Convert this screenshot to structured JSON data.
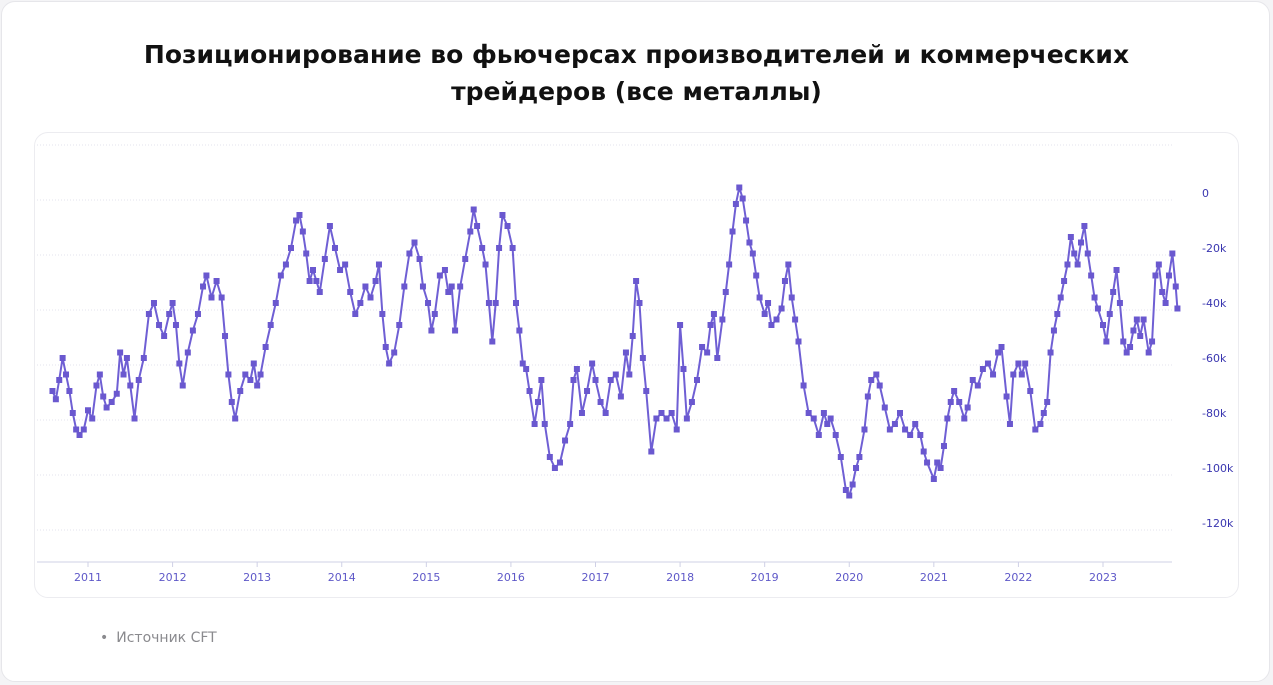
{
  "title_line1": "Позиционирование во фьючерсах производителей и коммерческих",
  "title_line2": "трейдеров (все металлы)",
  "source": "Источник CFT",
  "colors": {
    "series": "#6f5fd4",
    "marker": "#6a58cf",
    "grid": "#e3e3ee",
    "axis_text": "#3a36b0"
  },
  "chart_data": {
    "type": "line",
    "title": "Позиционирование во фьючерсах производителей и коммерческих трейдеров (все металлы)",
    "xlabel": "",
    "ylabel": "",
    "ylim": [
      -130000,
      15000
    ],
    "xlim": [
      2010.55,
      2023.9
    ],
    "grid": "horizontal",
    "legend": "none",
    "yticks": [
      {
        "v": 0,
        "label": "0"
      },
      {
        "v": -20000,
        "label": "-20k"
      },
      {
        "v": -40000,
        "label": "-40k"
      },
      {
        "v": -60000,
        "label": "-60k"
      },
      {
        "v": -80000,
        "label": "-80k"
      },
      {
        "v": -100000,
        "label": "-100k"
      },
      {
        "v": -120000,
        "label": "-120k"
      }
    ],
    "xticks": [
      {
        "v": 2011,
        "label": "2011"
      },
      {
        "v": 2012,
        "label": "2012"
      },
      {
        "v": 2013,
        "label": "2013"
      },
      {
        "v": 2014,
        "label": "2014"
      },
      {
        "v": 2015,
        "label": "2015"
      },
      {
        "v": 2016,
        "label": "2016"
      },
      {
        "v": 2017,
        "label": "2017"
      },
      {
        "v": 2018,
        "label": "2018"
      },
      {
        "v": 2019,
        "label": "2019"
      },
      {
        "v": 2020,
        "label": "2020"
      },
      {
        "v": 2021,
        "label": "2021"
      },
      {
        "v": 2022,
        "label": "2022"
      },
      {
        "v": 2023,
        "label": "2023"
      }
    ],
    "series": [
      {
        "points": [
          [
            2010.58,
            -72000
          ],
          [
            2010.62,
            -75000
          ],
          [
            2010.66,
            -68000
          ],
          [
            2010.7,
            -60000
          ],
          [
            2010.74,
            -66000
          ],
          [
            2010.78,
            -72000
          ],
          [
            2010.82,
            -80000
          ],
          [
            2010.86,
            -86000
          ],
          [
            2010.9,
            -88000
          ],
          [
            2010.95,
            -86000
          ],
          [
            2011.0,
            -79000
          ],
          [
            2011.05,
            -82000
          ],
          [
            2011.1,
            -70000
          ],
          [
            2011.14,
            -66000
          ],
          [
            2011.18,
            -74000
          ],
          [
            2011.22,
            -78000
          ],
          [
            2011.28,
            -76000
          ],
          [
            2011.34,
            -73000
          ],
          [
            2011.38,
            -58000
          ],
          [
            2011.42,
            -66000
          ],
          [
            2011.46,
            -60000
          ],
          [
            2011.5,
            -70000
          ],
          [
            2011.55,
            -82000
          ],
          [
            2011.6,
            -68000
          ],
          [
            2011.66,
            -60000
          ],
          [
            2011.72,
            -44000
          ],
          [
            2011.78,
            -40000
          ],
          [
            2011.84,
            -48000
          ],
          [
            2011.9,
            -52000
          ],
          [
            2011.96,
            -44000
          ],
          [
            2012.0,
            -40000
          ],
          [
            2012.04,
            -48000
          ],
          [
            2012.08,
            -62000
          ],
          [
            2012.12,
            -70000
          ],
          [
            2012.18,
            -58000
          ],
          [
            2012.24,
            -50000
          ],
          [
            2012.3,
            -44000
          ],
          [
            2012.36,
            -34000
          ],
          [
            2012.4,
            -30000
          ],
          [
            2012.46,
            -38000
          ],
          [
            2012.52,
            -32000
          ],
          [
            2012.58,
            -38000
          ],
          [
            2012.62,
            -52000
          ],
          [
            2012.66,
            -66000
          ],
          [
            2012.7,
            -76000
          ],
          [
            2012.74,
            -82000
          ],
          [
            2012.8,
            -72000
          ],
          [
            2012.86,
            -66000
          ],
          [
            2012.92,
            -68000
          ],
          [
            2012.96,
            -62000
          ],
          [
            2013.0,
            -70000
          ],
          [
            2013.04,
            -66000
          ],
          [
            2013.1,
            -56000
          ],
          [
            2013.16,
            -48000
          ],
          [
            2013.22,
            -40000
          ],
          [
            2013.28,
            -30000
          ],
          [
            2013.34,
            -26000
          ],
          [
            2013.4,
            -20000
          ],
          [
            2013.46,
            -10000
          ],
          [
            2013.5,
            -8000
          ],
          [
            2013.54,
            -14000
          ],
          [
            2013.58,
            -22000
          ],
          [
            2013.62,
            -32000
          ],
          [
            2013.66,
            -28000
          ],
          [
            2013.7,
            -32000
          ],
          [
            2013.74,
            -36000
          ],
          [
            2013.8,
            -24000
          ],
          [
            2013.86,
            -12000
          ],
          [
            2013.92,
            -20000
          ],
          [
            2013.98,
            -28000
          ],
          [
            2014.04,
            -26000
          ],
          [
            2014.1,
            -36000
          ],
          [
            2014.16,
            -44000
          ],
          [
            2014.22,
            -40000
          ],
          [
            2014.28,
            -34000
          ],
          [
            2014.34,
            -38000
          ],
          [
            2014.4,
            -32000
          ],
          [
            2014.44,
            -26000
          ],
          [
            2014.48,
            -44000
          ],
          [
            2014.52,
            -56000
          ],
          [
            2014.56,
            -62000
          ],
          [
            2014.62,
            -58000
          ],
          [
            2014.68,
            -48000
          ],
          [
            2014.74,
            -34000
          ],
          [
            2014.8,
            -22000
          ],
          [
            2014.86,
            -18000
          ],
          [
            2014.92,
            -24000
          ],
          [
            2014.96,
            -34000
          ],
          [
            2015.02,
            -40000
          ],
          [
            2015.06,
            -50000
          ],
          [
            2015.1,
            -44000
          ],
          [
            2015.16,
            -30000
          ],
          [
            2015.22,
            -28000
          ],
          [
            2015.26,
            -36000
          ],
          [
            2015.3,
            -34000
          ],
          [
            2015.34,
            -50000
          ],
          [
            2015.4,
            -34000
          ],
          [
            2015.46,
            -24000
          ],
          [
            2015.52,
            -14000
          ],
          [
            2015.56,
            -6000
          ],
          [
            2015.6,
            -12000
          ],
          [
            2015.66,
            -20000
          ],
          [
            2015.7,
            -26000
          ],
          [
            2015.74,
            -40000
          ],
          [
            2015.78,
            -54000
          ],
          [
            2015.82,
            -40000
          ],
          [
            2015.86,
            -20000
          ],
          [
            2015.9,
            -8000
          ],
          [
            2015.96,
            -12000
          ],
          [
            2016.02,
            -20000
          ],
          [
            2016.06,
            -40000
          ],
          [
            2016.1,
            -50000
          ],
          [
            2016.14,
            -62000
          ],
          [
            2016.18,
            -64000
          ],
          [
            2016.22,
            -72000
          ],
          [
            2016.28,
            -84000
          ],
          [
            2016.32,
            -76000
          ],
          [
            2016.36,
            -68000
          ],
          [
            2016.4,
            -84000
          ],
          [
            2016.46,
            -96000
          ],
          [
            2016.52,
            -100000
          ],
          [
            2016.58,
            -98000
          ],
          [
            2016.64,
            -90000
          ],
          [
            2016.7,
            -84000
          ],
          [
            2016.74,
            -68000
          ],
          [
            2016.78,
            -64000
          ],
          [
            2016.84,
            -80000
          ],
          [
            2016.9,
            -72000
          ],
          [
            2016.96,
            -62000
          ],
          [
            2017.0,
            -68000
          ],
          [
            2017.06,
            -76000
          ],
          [
            2017.12,
            -80000
          ],
          [
            2017.18,
            -68000
          ],
          [
            2017.24,
            -66000
          ],
          [
            2017.3,
            -74000
          ],
          [
            2017.36,
            -58000
          ],
          [
            2017.4,
            -66000
          ],
          [
            2017.44,
            -52000
          ],
          [
            2017.48,
            -32000
          ],
          [
            2017.52,
            -40000
          ],
          [
            2017.56,
            -60000
          ],
          [
            2017.6,
            -72000
          ],
          [
            2017.66,
            -94000
          ],
          [
            2017.72,
            -82000
          ],
          [
            2017.78,
            -80000
          ],
          [
            2017.84,
            -82000
          ],
          [
            2017.9,
            -80000
          ],
          [
            2017.96,
            -86000
          ],
          [
            2018.0,
            -48000
          ],
          [
            2018.04,
            -64000
          ],
          [
            2018.08,
            -82000
          ],
          [
            2018.14,
            -76000
          ],
          [
            2018.2,
            -68000
          ],
          [
            2018.26,
            -56000
          ],
          [
            2018.32,
            -58000
          ],
          [
            2018.36,
            -48000
          ],
          [
            2018.4,
            -44000
          ],
          [
            2018.44,
            -60000
          ],
          [
            2018.5,
            -46000
          ],
          [
            2018.54,
            -36000
          ],
          [
            2018.58,
            -26000
          ],
          [
            2018.62,
            -14000
          ],
          [
            2018.66,
            -4000
          ],
          [
            2018.7,
            2000
          ],
          [
            2018.74,
            -2000
          ],
          [
            2018.78,
            -10000
          ],
          [
            2018.82,
            -18000
          ],
          [
            2018.86,
            -22000
          ],
          [
            2018.9,
            -30000
          ],
          [
            2018.94,
            -38000
          ],
          [
            2019.0,
            -44000
          ],
          [
            2019.04,
            -40000
          ],
          [
            2019.08,
            -48000
          ],
          [
            2019.14,
            -46000
          ],
          [
            2019.2,
            -42000
          ],
          [
            2019.24,
            -32000
          ],
          [
            2019.28,
            -26000
          ],
          [
            2019.32,
            -38000
          ],
          [
            2019.36,
            -46000
          ],
          [
            2019.4,
            -54000
          ],
          [
            2019.46,
            -70000
          ],
          [
            2019.52,
            -80000
          ],
          [
            2019.58,
            -82000
          ],
          [
            2019.64,
            -88000
          ],
          [
            2019.7,
            -80000
          ],
          [
            2019.74,
            -84000
          ],
          [
            2019.78,
            -82000
          ],
          [
            2019.84,
            -88000
          ],
          [
            2019.9,
            -96000
          ],
          [
            2019.96,
            -108000
          ],
          [
            2020.0,
            -110000
          ],
          [
            2020.04,
            -106000
          ],
          [
            2020.08,
            -100000
          ],
          [
            2020.12,
            -96000
          ],
          [
            2020.18,
            -86000
          ],
          [
            2020.22,
            -74000
          ],
          [
            2020.26,
            -68000
          ],
          [
            2020.32,
            -66000
          ],
          [
            2020.36,
            -70000
          ],
          [
            2020.42,
            -78000
          ],
          [
            2020.48,
            -86000
          ],
          [
            2020.54,
            -84000
          ],
          [
            2020.6,
            -80000
          ],
          [
            2020.66,
            -86000
          ],
          [
            2020.72,
            -88000
          ],
          [
            2020.78,
            -84000
          ],
          [
            2020.84,
            -88000
          ],
          [
            2020.88,
            -94000
          ],
          [
            2020.92,
            -98000
          ],
          [
            2021.0,
            -104000
          ],
          [
            2021.04,
            -98000
          ],
          [
            2021.08,
            -100000
          ],
          [
            2021.12,
            -92000
          ],
          [
            2021.16,
            -82000
          ],
          [
            2021.2,
            -76000
          ],
          [
            2021.24,
            -72000
          ],
          [
            2021.3,
            -76000
          ],
          [
            2021.36,
            -82000
          ],
          [
            2021.4,
            -78000
          ],
          [
            2021.46,
            -68000
          ],
          [
            2021.52,
            -70000
          ],
          [
            2021.58,
            -64000
          ],
          [
            2021.64,
            -62000
          ],
          [
            2021.7,
            -66000
          ],
          [
            2021.76,
            -58000
          ],
          [
            2021.8,
            -56000
          ],
          [
            2021.86,
            -74000
          ],
          [
            2021.9,
            -84000
          ],
          [
            2021.94,
            -66000
          ],
          [
            2022.0,
            -62000
          ],
          [
            2022.04,
            -66000
          ],
          [
            2022.08,
            -62000
          ],
          [
            2022.14,
            -72000
          ],
          [
            2022.2,
            -86000
          ],
          [
            2022.26,
            -84000
          ],
          [
            2022.3,
            -80000
          ],
          [
            2022.34,
            -76000
          ],
          [
            2022.38,
            -58000
          ],
          [
            2022.42,
            -50000
          ],
          [
            2022.46,
            -44000
          ],
          [
            2022.5,
            -38000
          ],
          [
            2022.54,
            -32000
          ],
          [
            2022.58,
            -26000
          ],
          [
            2022.62,
            -16000
          ],
          [
            2022.66,
            -22000
          ],
          [
            2022.7,
            -26000
          ],
          [
            2022.74,
            -18000
          ],
          [
            2022.78,
            -12000
          ],
          [
            2022.82,
            -22000
          ],
          [
            2022.86,
            -30000
          ],
          [
            2022.9,
            -38000
          ],
          [
            2022.94,
            -42000
          ],
          [
            2023.0,
            -48000
          ],
          [
            2023.04,
            -54000
          ],
          [
            2023.08,
            -44000
          ],
          [
            2023.12,
            -36000
          ],
          [
            2023.16,
            -28000
          ],
          [
            2023.2,
            -40000
          ],
          [
            2023.24,
            -54000
          ],
          [
            2023.28,
            -58000
          ],
          [
            2023.32,
            -56000
          ],
          [
            2023.36,
            -50000
          ],
          [
            2023.4,
            -46000
          ],
          [
            2023.44,
            -52000
          ],
          [
            2023.48,
            -46000
          ],
          [
            2023.54,
            -58000
          ],
          [
            2023.58,
            -54000
          ],
          [
            2023.62,
            -30000
          ],
          [
            2023.66,
            -26000
          ],
          [
            2023.7,
            -36000
          ],
          [
            2023.74,
            -40000
          ],
          [
            2023.78,
            -30000
          ],
          [
            2023.82,
            -22000
          ],
          [
            2023.86,
            -34000
          ],
          [
            2023.88,
            -42000
          ]
        ]
      }
    ]
  }
}
